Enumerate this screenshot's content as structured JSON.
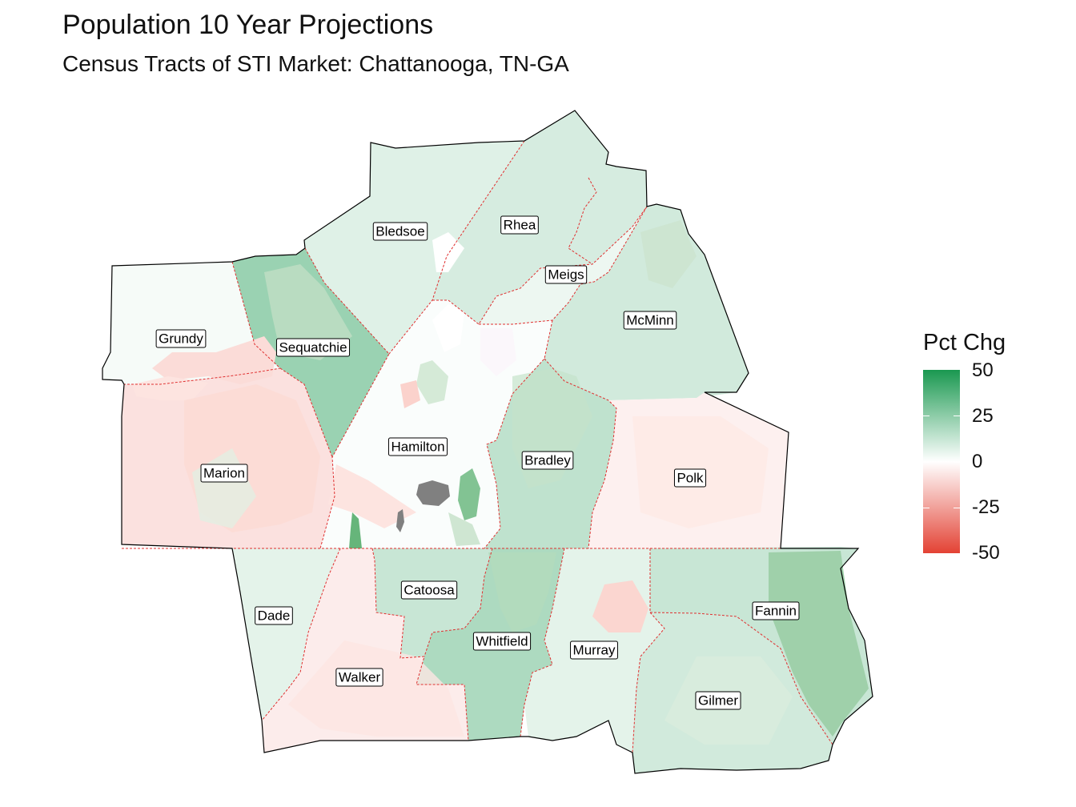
{
  "title": "Population 10 Year Projections",
  "subtitle": "Census Tracts of STI Market: Chattanooga, TN-GA",
  "legend": {
    "title": "Pct Chg",
    "min": -50,
    "max": 50,
    "ticks": [
      "50",
      "25",
      "0",
      "-25",
      "-50"
    ],
    "colors": {
      "high": "#1a9850",
      "mid": "#ffffff",
      "low": "#e34234",
      "missing": "#808080"
    }
  },
  "counties": [
    {
      "name": "Bledsoe",
      "pct": 7
    },
    {
      "name": "Rhea",
      "pct": 9
    },
    {
      "name": "Meigs",
      "pct": 4
    },
    {
      "name": "McMinn",
      "pct": 10
    },
    {
      "name": "Grundy",
      "pct": 2
    },
    {
      "name": "Sequatchie",
      "pct": 22
    },
    {
      "name": "Hamilton",
      "pct": 1
    },
    {
      "name": "Bradley",
      "pct": 14
    },
    {
      "name": "Marion",
      "pct": -8
    },
    {
      "name": "Polk",
      "pct": -4
    },
    {
      "name": "Catoosa",
      "pct": 12
    },
    {
      "name": "Dade",
      "pct": 6
    },
    {
      "name": "Whitfield",
      "pct": 18
    },
    {
      "name": "Murray",
      "pct": 6
    },
    {
      "name": "Fannin",
      "pct": 12
    },
    {
      "name": "Walker",
      "pct": -5
    },
    {
      "name": "Gilmer",
      "pct": 10
    }
  ]
}
